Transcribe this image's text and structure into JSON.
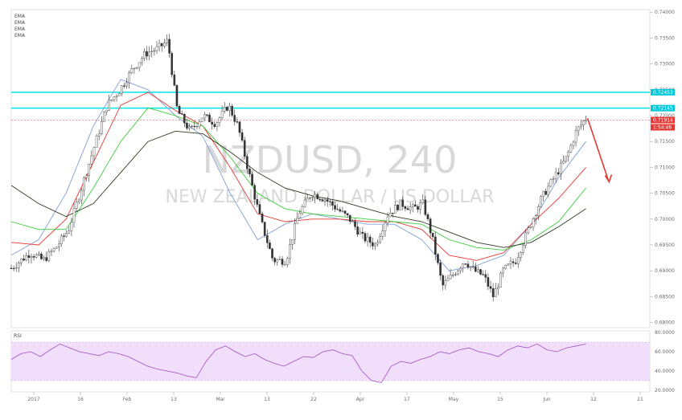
{
  "chart_data": {
    "type": "candlestick",
    "symbol_watermark": "NZDUSD, 240",
    "description_watermark": "NEW ZEALAND DOLLAR / US DOLLAR",
    "legend": [
      "EMA",
      "EMA",
      "EMA",
      "EMA"
    ],
    "colors": {
      "up": "#333333",
      "down": "#333333",
      "ema_fast": "#7fa0d8",
      "ema_mid": "#e53935",
      "ema_slow": "#3bcc3b",
      "ema_long": "#2f3b22",
      "hline": "#00e5ee",
      "arrow": "#e53935",
      "rsi": "#a24ec1",
      "rsi_band": "#f1defa"
    },
    "price_axis": {
      "ticks": [
        "0.74000",
        "0.73500",
        "0.73000",
        "0.72500",
        "0.72000",
        "0.71500",
        "0.71000",
        "0.70500",
        "0.70000",
        "0.69500",
        "0.69000",
        "0.68500",
        "0.68000"
      ],
      "range": [
        0.679,
        0.7405
      ]
    },
    "tags": [
      {
        "label": "0.72453",
        "color": "#00c8d8"
      },
      {
        "label": "0.72145",
        "color": "#00c8d8"
      },
      {
        "label": "0.71914",
        "color": "#e53935"
      },
      {
        "label": "1:54:46",
        "color": "#e53935"
      }
    ],
    "horizontal_lines": [
      0.72453,
      0.72145
    ],
    "last_price": 0.71914,
    "time_axis": [
      "2017",
      "16",
      "Feb",
      "13",
      "Mar",
      "13",
      "22",
      "Apr",
      "17",
      "May",
      "15",
      "Jun",
      "12",
      "21"
    ],
    "price_series": [
      {
        "t": 0,
        "p": 0.6905
      },
      {
        "t": 0.03,
        "p": 0.6935
      },
      {
        "t": 0.05,
        "p": 0.692
      },
      {
        "t": 0.07,
        "p": 0.6945
      },
      {
        "t": 0.09,
        "p": 0.698
      },
      {
        "t": 0.11,
        "p": 0.706
      },
      {
        "t": 0.13,
        "p": 0.714
      },
      {
        "t": 0.15,
        "p": 0.722
      },
      {
        "t": 0.17,
        "p": 0.725
      },
      {
        "t": 0.19,
        "p": 0.729
      },
      {
        "t": 0.21,
        "p": 0.732
      },
      {
        "t": 0.23,
        "p": 0.733
      },
      {
        "t": 0.245,
        "p": 0.7345
      },
      {
        "t": 0.26,
        "p": 0.721
      },
      {
        "t": 0.28,
        "p": 0.717
      },
      {
        "t": 0.3,
        "p": 0.72
      },
      {
        "t": 0.32,
        "p": 0.7185
      },
      {
        "t": 0.34,
        "p": 0.722
      },
      {
        "t": 0.355,
        "p": 0.718
      },
      {
        "t": 0.37,
        "p": 0.71
      },
      {
        "t": 0.39,
        "p": 0.7
      },
      {
        "t": 0.41,
        "p": 0.692
      },
      {
        "t": 0.43,
        "p": 0.692
      },
      {
        "t": 0.45,
        "p": 0.701
      },
      {
        "t": 0.47,
        "p": 0.705
      },
      {
        "t": 0.49,
        "p": 0.704
      },
      {
        "t": 0.51,
        "p": 0.702
      },
      {
        "t": 0.53,
        "p": 0.7
      },
      {
        "t": 0.55,
        "p": 0.6965
      },
      {
        "t": 0.57,
        "p": 0.695
      },
      {
        "t": 0.59,
        "p": 0.701
      },
      {
        "t": 0.61,
        "p": 0.703
      },
      {
        "t": 0.63,
        "p": 0.702
      },
      {
        "t": 0.645,
        "p": 0.703
      },
      {
        "t": 0.66,
        "p": 0.696
      },
      {
        "t": 0.675,
        "p": 0.687
      },
      {
        "t": 0.69,
        "p": 0.689
      },
      {
        "t": 0.71,
        "p": 0.692
      },
      {
        "t": 0.725,
        "p": 0.69
      },
      {
        "t": 0.74,
        "p": 0.689
      },
      {
        "t": 0.755,
        "p": 0.685
      },
      {
        "t": 0.77,
        "p": 0.69
      },
      {
        "t": 0.79,
        "p": 0.692
      },
      {
        "t": 0.81,
        "p": 0.698
      },
      {
        "t": 0.83,
        "p": 0.704
      },
      {
        "t": 0.85,
        "p": 0.708
      },
      {
        "t": 0.87,
        "p": 0.712
      },
      {
        "t": 0.885,
        "p": 0.717
      },
      {
        "t": 0.9,
        "p": 0.7195
      }
    ],
    "ema_series": [
      {
        "name": "EMA",
        "values": [
          0.693,
          0.696,
          0.705,
          0.718,
          0.727,
          0.725,
          0.72,
          0.716,
          0.705,
          0.696,
          0.699,
          0.701,
          0.7,
          0.699,
          0.699,
          0.696,
          0.69,
          0.691,
          0.693,
          0.699,
          0.708,
          0.715
        ]
      },
      {
        "name": "EMA",
        "values": [
          0.6955,
          0.695,
          0.7,
          0.711,
          0.722,
          0.7245,
          0.721,
          0.718,
          0.71,
          0.701,
          0.6995,
          0.7,
          0.7,
          0.6995,
          0.6995,
          0.698,
          0.693,
          0.692,
          0.6935,
          0.699,
          0.704,
          0.71
        ]
      },
      {
        "name": "EMA",
        "values": [
          0.6995,
          0.698,
          0.698,
          0.706,
          0.715,
          0.7215,
          0.72,
          0.718,
          0.712,
          0.705,
          0.702,
          0.701,
          0.7005,
          0.7,
          0.6995,
          0.699,
          0.696,
          0.6945,
          0.694,
          0.696,
          0.6995,
          0.706
        ]
      },
      {
        "name": "EMA",
        "values": [
          0.7065,
          0.703,
          0.7005,
          0.703,
          0.709,
          0.715,
          0.717,
          0.7165,
          0.713,
          0.709,
          0.706,
          0.7045,
          0.7035,
          0.702,
          0.7005,
          0.6995,
          0.6975,
          0.6955,
          0.6945,
          0.6955,
          0.6985,
          0.702
        ]
      }
    ],
    "rsi": {
      "label": "RSI",
      "ticks": [
        "80.0000",
        "60.0000",
        "40.0000",
        "20.0000"
      ],
      "range": [
        20,
        80
      ],
      "band": [
        30,
        70
      ],
      "values": [
        52,
        58,
        60,
        55,
        62,
        68,
        64,
        60,
        58,
        56,
        60,
        58,
        55,
        50,
        45,
        42,
        40,
        38,
        35,
        33,
        50,
        62,
        66,
        60,
        55,
        58,
        52,
        48,
        45,
        50,
        55,
        54,
        60,
        62,
        58,
        56,
        40,
        30,
        28,
        45,
        50,
        48,
        52,
        55,
        60,
        58,
        62,
        64,
        60,
        58,
        55,
        62,
        66,
        64,
        68,
        62,
        60,
        64,
        66,
        68
      ]
    },
    "arrow": {
      "from_price": 0.7195,
      "to_price": 0.7075,
      "direction": "down"
    }
  }
}
